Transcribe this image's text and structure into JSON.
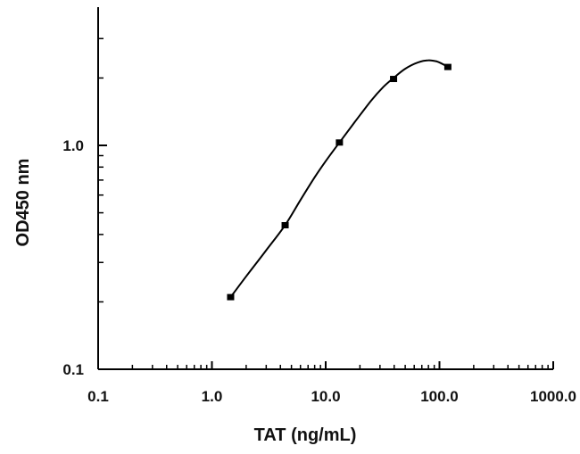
{
  "chart_data": {
    "type": "scatter",
    "title": "",
    "xlabel": "TAT (ng/mL)",
    "ylabel": "OD450 nm",
    "xscale": "log",
    "yscale": "log",
    "xlim": [
      0.1,
      1000.0
    ],
    "ylim": [
      0.1,
      3.0
    ],
    "grid": false,
    "legend": "none",
    "x_tick_labels": [
      "0.1",
      "1.0",
      "10.0",
      "100.0",
      "1000.0"
    ],
    "y_tick_labels": [
      "0.1",
      "1.0"
    ],
    "series": [
      {
        "x": [
          1.46,
          4.4,
          13.2,
          39.5,
          118.5
        ],
        "y": [
          0.21,
          0.44,
          1.03,
          1.98,
          2.24
        ]
      }
    ],
    "fit_curve": {
      "x": [
        1.46,
        2.0,
        3.0,
        4.4,
        6.0,
        8.0,
        10.0,
        13.2,
        18.0,
        25.0,
        32.0,
        39.5,
        50.0,
        65.0,
        80.0,
        95.0,
        108.0,
        118.5
      ],
      "y": [
        0.21,
        0.26,
        0.34,
        0.44,
        0.57,
        0.72,
        0.85,
        1.03,
        1.27,
        1.58,
        1.82,
        2.0,
        2.2,
        2.35,
        2.4,
        2.37,
        2.3,
        2.24
      ]
    }
  }
}
